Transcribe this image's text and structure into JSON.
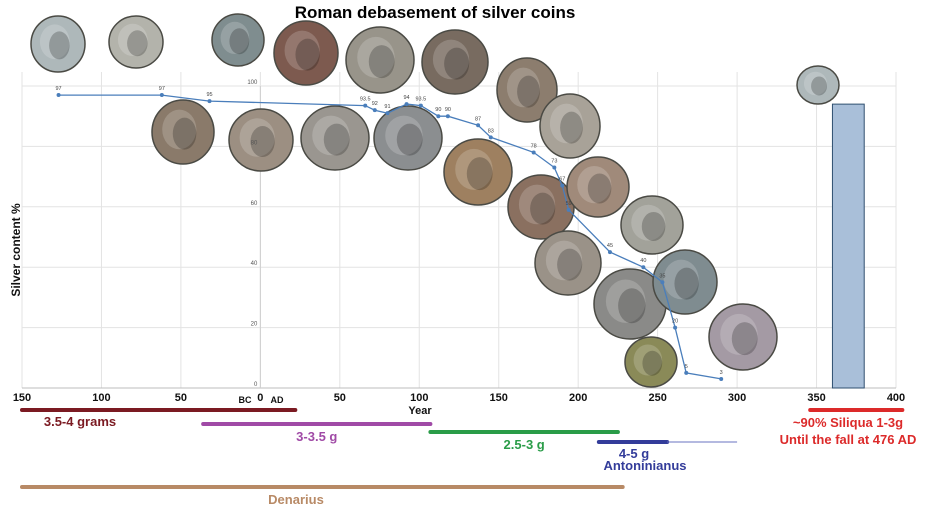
{
  "chart_data": {
    "type": "line",
    "title": "Roman debasement of silver coins",
    "xlabel": "Year",
    "ylabel": "Silver content %",
    "xlim": [
      -150,
      400
    ],
    "ylim": [
      0,
      100
    ],
    "x_ticks": [
      -150,
      -100,
      -50,
      0,
      50,
      100,
      150,
      200,
      250,
      300,
      350,
      400
    ],
    "x_tick_labels": [
      "150",
      "100",
      "50",
      "0",
      "50",
      "100",
      "150",
      "200",
      "250",
      "300",
      "350",
      "400"
    ],
    "y_ticks": [
      0,
      20,
      40,
      60,
      80,
      100
    ],
    "era_labels": {
      "bc": "BC",
      "ad": "AD"
    },
    "grid": true,
    "series": [
      {
        "color": "#4a7ebb",
        "points": [
          {
            "x": -127,
            "y": 97,
            "label": "97"
          },
          {
            "x": -62,
            "y": 97,
            "label": "97"
          },
          {
            "x": -32,
            "y": 95,
            "label": "95"
          },
          {
            "x": 66,
            "y": 93.5,
            "label": "93.5"
          },
          {
            "x": 72,
            "y": 92,
            "label": "92"
          },
          {
            "x": 80,
            "y": 91,
            "label": "91"
          },
          {
            "x": 92,
            "y": 94,
            "label": "94"
          },
          {
            "x": 101,
            "y": 93.5,
            "label": "93.5"
          },
          {
            "x": 112,
            "y": 90,
            "label": "90"
          },
          {
            "x": 118,
            "y": 90,
            "label": "90"
          },
          {
            "x": 137,
            "y": 87,
            "label": "87"
          },
          {
            "x": 145,
            "y": 83,
            "label": "83"
          },
          {
            "x": 172,
            "y": 78,
            "label": "78"
          },
          {
            "x": 185,
            "y": 73,
            "label": "73"
          },
          {
            "x": 190,
            "y": 67,
            "label": "67"
          },
          {
            "x": 194,
            "y": 59,
            "label": "59"
          },
          {
            "x": 220,
            "y": 45,
            "label": "45"
          },
          {
            "x": 241,
            "y": 40,
            "label": "40"
          },
          {
            "x": 253,
            "y": 35,
            "label": "35"
          },
          {
            "x": 261,
            "y": 20,
            "label": "20"
          },
          {
            "x": 268,
            "y": 5,
            "label": "5"
          },
          {
            "x": 290,
            "y": 3,
            "label": "3"
          }
        ]
      }
    ],
    "bar": {
      "x_start": 360,
      "x_end": 380,
      "value": 94,
      "color": "#a9bfd9"
    }
  },
  "bands": [
    {
      "id": "band-3-5-4-grams",
      "label": "3.5-4 grams",
      "color": "#7b1a22",
      "x_start": -150,
      "x_end": 22,
      "row": 1
    },
    {
      "id": "band-3-3-5-g",
      "label": "3-3.5 g",
      "color": "#a04aa6",
      "x_start": -36,
      "x_end": 107,
      "row": 2
    },
    {
      "id": "band-2-5-3-g",
      "label": "2.5-3 g",
      "color": "#2a9c48",
      "x_start": 107,
      "x_end": 225,
      "row": 3
    },
    {
      "id": "band-4-5-g",
      "label": "4-5 g",
      "color": "#333c9a",
      "x_start": 213,
      "x_end": 256,
      "row": 4
    },
    {
      "id": "band-siliqua",
      "label": "~90% Siliqua 1-3g",
      "color": "#dc2a2a",
      "x_start": 346,
      "x_end": 404,
      "row": 1
    }
  ],
  "band_notes": {
    "antoninianus": "Antoninianus",
    "siliqua_note": "Until the fall at 476 AD"
  },
  "denarius": {
    "label": "Denarius",
    "color": "#b88a66",
    "x_start": -150,
    "x_end": 228
  },
  "coin_images": [
    {
      "name": "coin-roman-republic-roma",
      "tone": "#aeb8ba"
    },
    {
      "name": "coin-republic-chariot",
      "tone": "#b3b3ab"
    },
    {
      "name": "coin-augustus",
      "tone": "#7f8d8f"
    },
    {
      "name": "coin-nero",
      "tone": "#7d5a4f"
    },
    {
      "name": "coin-trajan",
      "tone": "#98948a"
    },
    {
      "name": "coin-hadrian",
      "tone": "#786b60"
    },
    {
      "name": "coin-antoninus",
      "tone": "#8c7d6e"
    },
    {
      "name": "coin-faustina",
      "tone": "#8a7a6a"
    },
    {
      "name": "coin-ship",
      "tone": "#9c8f82"
    },
    {
      "name": "coin-vespasian",
      "tone": "#9a9690"
    },
    {
      "name": "coin-domitian",
      "tone": "#8b8e90"
    },
    {
      "name": "coin-nerva",
      "tone": "#a8a298"
    },
    {
      "name": "coin-marcus",
      "tone": "#9e8060"
    },
    {
      "name": "coin-commodus",
      "tone": "#8a7060"
    },
    {
      "name": "coin-septimius",
      "tone": "#a08a7a"
    },
    {
      "name": "coin-caracalla",
      "tone": "#9a9288"
    },
    {
      "name": "coin-gordian",
      "tone": "#a2a29a"
    },
    {
      "name": "coin-philip",
      "tone": "#8a8a88"
    },
    {
      "name": "coin-gallienus",
      "tone": "#7f8c90"
    },
    {
      "name": "coin-diocletian",
      "tone": "#8a8a58"
    },
    {
      "name": "coin-siliqua",
      "tone": "#a49aa4"
    }
  ]
}
